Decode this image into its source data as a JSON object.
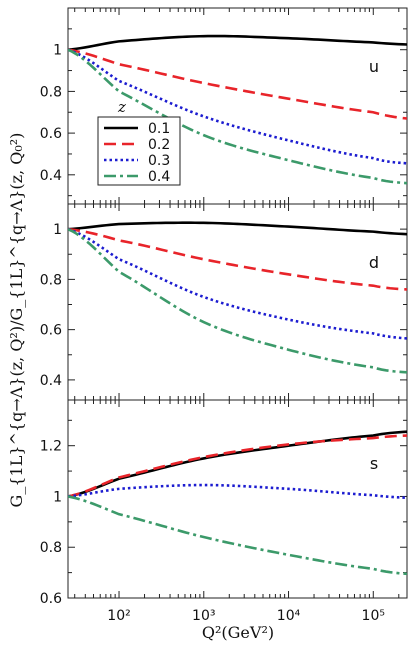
{
  "chart_data": {
    "type": "line",
    "xlabel": "Q²(GeV²)",
    "ylabel": "G_{1L}^{q→Λ}(z, Q²)/G_{1L}^{q→Λ}(z, Q₀²)",
    "xscale": "log",
    "xlim": [
      25,
      250000
    ],
    "xticks": [
      {
        "value": 100,
        "label": "10²"
      },
      {
        "value": 1000,
        "label": "10³"
      },
      {
        "value": 10000,
        "label": "10⁴"
      },
      {
        "value": 100000,
        "label": "10⁵"
      }
    ],
    "legend": {
      "title": "z",
      "placement": "inside top panel, lower-left",
      "entries": [
        "0.1",
        "0.2",
        "0.3",
        "0.4"
      ]
    },
    "series_styles": [
      {
        "color": "#000000",
        "dash": "solid"
      },
      {
        "color": "#e8242a",
        "dash": "dashed"
      },
      {
        "color": "#1c1cd0",
        "dash": "dotted"
      },
      {
        "color": "#3c9a6a",
        "dash": "dashdot"
      }
    ],
    "panels": [
      {
        "label": "u",
        "ylim": [
          0.26,
          1.2
        ],
        "yticks": [
          0.4,
          0.6,
          0.8,
          1
        ],
        "ytick_labels": [
          "0.4",
          "0.6",
          "0.8",
          "1"
        ],
        "x": [
          25,
          100,
          1000,
          10000,
          100000,
          250000
        ],
        "series": [
          {
            "name": "0.1",
            "values": [
              1.0,
              1.04,
              1.065,
              1.055,
              1.035,
              1.025
            ]
          },
          {
            "name": "0.2",
            "values": [
              1.0,
              0.93,
              0.84,
              0.765,
              0.7,
              0.67
            ]
          },
          {
            "name": "0.3",
            "values": [
              1.0,
              0.85,
              0.68,
              0.565,
              0.48,
              0.455
            ]
          },
          {
            "name": "0.4",
            "values": [
              1.0,
              0.8,
              0.59,
              0.47,
              0.385,
              0.36
            ]
          }
        ]
      },
      {
        "label": "d",
        "ylim": [
          0.32,
          1.1
        ],
        "yticks": [
          0.4,
          0.6,
          0.8,
          1
        ],
        "ytick_labels": [
          "0.4",
          "0.6",
          "0.8",
          "1"
        ],
        "x": [
          25,
          100,
          1000,
          10000,
          100000,
          250000
        ],
        "series": [
          {
            "name": "0.1",
            "values": [
              1.0,
              1.02,
              1.025,
              1.01,
              0.99,
              0.98
            ]
          },
          {
            "name": "0.2",
            "values": [
              1.0,
              0.955,
              0.88,
              0.82,
              0.775,
              0.76
            ]
          },
          {
            "name": "0.3",
            "values": [
              1.0,
              0.88,
              0.73,
              0.64,
              0.585,
              0.565
            ]
          },
          {
            "name": "0.4",
            "values": [
              1.0,
              0.83,
              0.63,
              0.52,
              0.45,
              0.43
            ]
          }
        ]
      },
      {
        "label": "s",
        "ylim": [
          0.6,
          1.38
        ],
        "yticks": [
          0.6,
          0.8,
          1,
          1.2
        ],
        "ytick_labels": [
          "0.6",
          "0.8",
          "1",
          "1.2"
        ],
        "x": [
          25,
          100,
          1000,
          10000,
          100000,
          250000
        ],
        "series": [
          {
            "name": "0.1",
            "values": [
              1.0,
              1.07,
              1.15,
              1.2,
              1.24,
              1.255
            ]
          },
          {
            "name": "0.2",
            "values": [
              1.0,
              1.075,
              1.155,
              1.205,
              1.23,
              1.24
            ]
          },
          {
            "name": "0.3",
            "values": [
              1.0,
              1.03,
              1.045,
              1.03,
              1.005,
              0.995
            ]
          },
          {
            "name": "0.4",
            "values": [
              1.0,
              0.93,
              0.84,
              0.77,
              0.715,
              0.695
            ]
          }
        ]
      }
    ]
  }
}
